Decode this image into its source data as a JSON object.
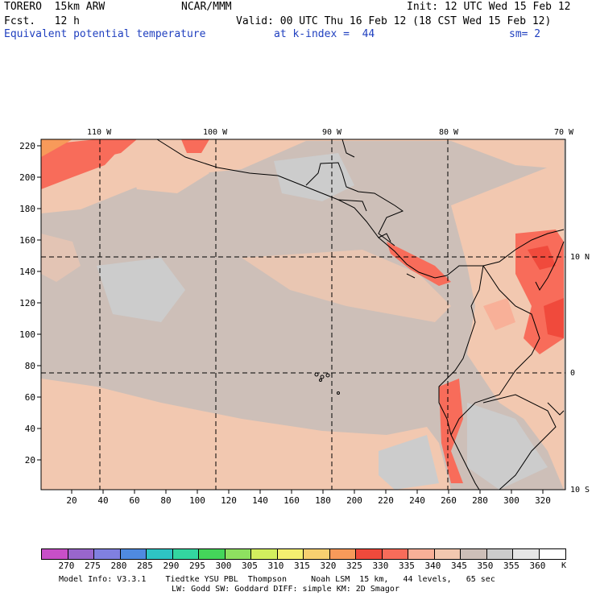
{
  "header": {
    "model": "TORERO  15km ARW",
    "center": "NCAR/MMM",
    "init": "Init: 12 UTC Wed 15 Feb 12",
    "fcst": "Fcst.   12 h",
    "valid": "Valid: 00 UTC Thu 16 Feb 12 (18 CST Wed 15 Feb 12)",
    "field": "Equivalent potential temperature",
    "level": "at k-index =  44",
    "smooth": "sm= 2"
  },
  "map": {
    "top_lon_labels": [
      "110 W",
      "100 W",
      "90 W",
      "80 W",
      "70 W"
    ],
    "right_lat_labels": [
      "10 N",
      "0",
      "10 S"
    ],
    "left_ticks": [
      "220",
      "200",
      "180",
      "160",
      "140",
      "120",
      "100",
      "80",
      "60",
      "40",
      "20"
    ],
    "bottom_ticks": [
      "20",
      "40",
      "60",
      "80",
      "100",
      "120",
      "140",
      "160",
      "180",
      "200",
      "220",
      "240",
      "260",
      "280",
      "300",
      "320"
    ]
  },
  "legend": {
    "values": [
      "270",
      "275",
      "280",
      "285",
      "290",
      "295",
      "300",
      "305",
      "310",
      "315",
      "320",
      "325",
      "330",
      "335",
      "340",
      "345",
      "350",
      "355",
      "360"
    ],
    "unit": "K",
    "colors": [
      "#c84fc8",
      "#9966cc",
      "#8080e0",
      "#4f8ae0",
      "#2ec4c4",
      "#33d6a0",
      "#44d65a",
      "#8ee060",
      "#d2ef5e",
      "#f4f070",
      "#f8d070",
      "#f89a5a",
      "#f04a3c",
      "#f86c5a",
      "#f8b098",
      "#f2c8b0",
      "#cdbfb8",
      "#cccccc",
      "#e6e6e6",
      "#ffffff"
    ]
  },
  "footer": {
    "line1": "Model Info: V3.3.1    Tiedtke YSU PBL  Thompson     Noah LSM  15 km,   44 levels,   65 sec",
    "line2": "LW: Godd SW: Goddard DIFF: simple KM: 2D Smagor"
  }
}
